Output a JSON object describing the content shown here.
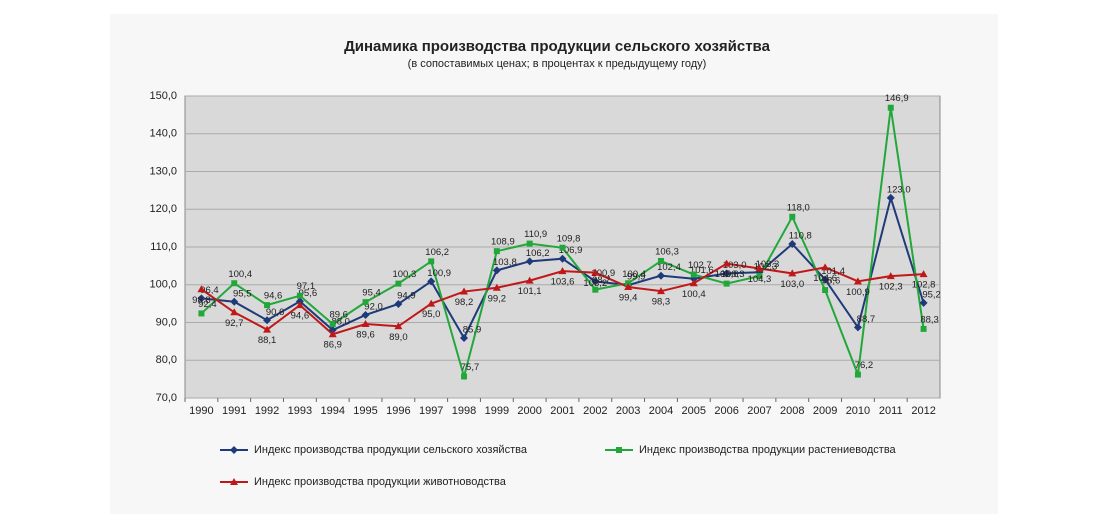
{
  "chart_data": {
    "type": "line",
    "title": "Динамика производства продукции сельского хозяйства",
    "subtitle": "(в сопоставимых ценах; в процентах к предыдущему году)",
    "categories": [
      "1990",
      "1991",
      "1992",
      "1993",
      "1994",
      "1995",
      "1996",
      "1997",
      "1998",
      "1999",
      "2000",
      "2001",
      "2002",
      "2003",
      "2004",
      "2005",
      "2006",
      "2007",
      "2008",
      "2009",
      "2010",
      "2011",
      "2012"
    ],
    "ylim": [
      70,
      150
    ],
    "yticks": [
      {
        "value": 70,
        "label": "70,0"
      },
      {
        "value": 80,
        "label": "80,0"
      },
      {
        "value": 90,
        "label": "90,0"
      },
      {
        "value": 100,
        "label": "100,0"
      },
      {
        "value": 110,
        "label": "110,0"
      },
      {
        "value": 120,
        "label": "120,0"
      },
      {
        "value": 130,
        "label": "130,0"
      },
      {
        "value": 140,
        "label": "140,0"
      },
      {
        "value": 150,
        "label": "150,0"
      }
    ],
    "grid": true,
    "series": [
      {
        "name": "Индекс производства продукции сельского хозяйства",
        "color": "#1f3a7a",
        "marker": "diamond",
        "values": [
          96.4,
          95.5,
          90.6,
          95.6,
          88.0,
          92.0,
          94.9,
          100.9,
          85.9,
          103.8,
          106.2,
          106.9,
          100.9,
          99.9,
          102.4,
          101.6,
          103.0,
          103.3,
          110.8,
          101.4,
          88.7,
          123.0,
          95.2
        ],
        "value_labels": [
          "96,4",
          "95,5",
          "90,6",
          "95,6",
          "88,0",
          "92,0",
          "94,9",
          "100,9",
          "85,9",
          "103,8",
          "106,2",
          "106,9",
          "100,9",
          "99,9",
          "102,4",
          "101,6",
          "103,0",
          "103,3",
          "110,8",
          "101,4",
          "88,7",
          "123,0",
          "95,2"
        ]
      },
      {
        "name": "Индекс производства продукции растениеводства",
        "color": "#22a83a",
        "marker": "square",
        "values": [
          92.4,
          100.4,
          94.6,
          97.1,
          89.6,
          95.4,
          100.3,
          106.2,
          75.7,
          108.9,
          110.9,
          109.8,
          98.7,
          100.4,
          106.3,
          102.7,
          100.3,
          102.3,
          118.0,
          98.6,
          76.2,
          146.9,
          88.3
        ],
        "value_labels": [
          "92,4",
          "100,4",
          "94,6",
          "97,1",
          "89,6",
          "95,4",
          "100,3",
          "106,2",
          "75,7",
          "108,9",
          "110,9",
          "109,8",
          "98,7",
          "100,4",
          "106,3",
          "102,7",
          "100,3",
          "102,3",
          "118,0",
          "98,6",
          "76,2",
          "146,9",
          "88,3"
        ]
      },
      {
        "name": "Индекс производства продукции животноводства",
        "color": "#c01818",
        "marker": "triangle",
        "values": [
          98.8,
          92.7,
          88.1,
          94.6,
          86.9,
          89.6,
          89.0,
          95.0,
          98.2,
          99.2,
          101.1,
          103.6,
          103.2,
          99.4,
          98.3,
          100.4,
          105.6,
          104.3,
          103.0,
          104.6,
          100.9,
          102.3,
          102.8
        ],
        "value_labels": [
          "98,8",
          "92,7",
          "88,1",
          "94,6",
          "86,9",
          "89,6",
          "89,0",
          "95,0",
          "98,2",
          "99,2",
          "101,1",
          "103,6",
          "103,2",
          "99,4",
          "98,3",
          "100,4",
          "105,6",
          "104,3",
          "103,0",
          "104,6",
          "100,9",
          "102,3",
          "102,8"
        ]
      }
    ]
  }
}
